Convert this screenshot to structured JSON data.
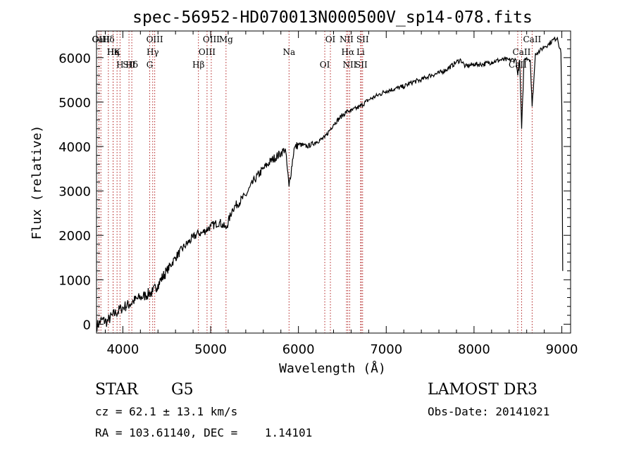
{
  "chart_data": {
    "type": "line",
    "title": "spec-56952-HD070013N000500V_sp14-078.fits",
    "xlabel": "Wavelength (Å)",
    "ylabel": "Flux (relative)",
    "xlim": [
      3700,
      9100
    ],
    "ylim": [
      -200,
      6600
    ],
    "xticks": [
      4000,
      5000,
      6000,
      7000,
      8000,
      9000
    ],
    "yticks": [
      0,
      1000,
      2000,
      3000,
      4000,
      5000,
      6000
    ],
    "xtick_labels": [
      "4000",
      "5000",
      "6000",
      "7000",
      "8000",
      "9000"
    ],
    "ytick_labels": [
      "0",
      "1000",
      "2000",
      "3000",
      "4000",
      "5000",
      "6000"
    ],
    "grid": false,
    "series": [
      {
        "name": "spectrum",
        "x": [
          3700,
          3760,
          3820,
          3880,
          3920,
          3980,
          4020,
          4080,
          4120,
          4200,
          4260,
          4300,
          4340,
          4400,
          4500,
          4600,
          4700,
          4800,
          4860,
          4900,
          5000,
          5100,
          5175,
          5250,
          5400,
          5500,
          5600,
          5700,
          5800,
          5850,
          5893,
          5950,
          6000,
          6100,
          6200,
          6300,
          6400,
          6500,
          6563,
          6600,
          6700,
          6800,
          6900,
          7000,
          7100,
          7200,
          7300,
          7400,
          7500,
          7600,
          7700,
          7800,
          7850,
          7900,
          8000,
          8100,
          8200,
          8300,
          8400,
          8480,
          8498,
          8520,
          8542,
          8570,
          8600,
          8640,
          8662,
          8700,
          8750,
          8800,
          8850,
          8900,
          8950,
          8990,
          9000,
          9010
        ],
        "y": [
          -50,
          100,
          50,
          200,
          250,
          350,
          400,
          450,
          520,
          600,
          650,
          700,
          720,
          900,
          1200,
          1500,
          1750,
          1950,
          2050,
          2050,
          2200,
          2300,
          2150,
          2600,
          2900,
          3250,
          3500,
          3700,
          3850,
          3950,
          3100,
          3950,
          4050,
          4000,
          4100,
          4200,
          4500,
          4700,
          4800,
          4800,
          4900,
          5050,
          5150,
          5250,
          5300,
          5350,
          5450,
          5500,
          5600,
          5650,
          5750,
          5900,
          5950,
          5800,
          5850,
          5850,
          5900,
          5950,
          5950,
          5950,
          5600,
          5950,
          4400,
          5950,
          6000,
          5950,
          4900,
          6100,
          6150,
          6250,
          6300,
          6400,
          6450,
          6100,
          4900,
          1200
        ]
      }
    ],
    "spectral_lines": [
      {
        "label": "Hδ",
        "x": 3835
      },
      {
        "label": "K",
        "x": 3934
      },
      {
        "label": "Hδ",
        "x": 4102
      },
      {
        "label": "OII",
        "x": 3727
      },
      {
        "label": "He",
        "x": 3889
      },
      {
        "label": "SII",
        "x": 4070
      },
      {
        "label": "CaII",
        "x": 3750
      },
      {
        "label": "Hη",
        "x": 3889
      },
      {
        "label": "H",
        "x": 3968
      },
      {
        "label": "OIII",
        "x": 4363
      },
      {
        "label": "Hγ",
        "x": 4340
      },
      {
        "label": "G",
        "x": 4306
      },
      {
        "label": "OIII",
        "x": 5007
      },
      {
        "label": "OIII",
        "x": 4959
      },
      {
        "label": "Hβ",
        "x": 4861
      },
      {
        "label": "Mg",
        "x": 5175
      },
      {
        "label": "Na",
        "x": 5893
      },
      {
        "label": "OI",
        "x": 6300
      },
      {
        "label": "OI",
        "x": 6364
      },
      {
        "label": "Hα",
        "x": 6563
      },
      {
        "label": "SII",
        "x": 6716
      },
      {
        "label": "NII",
        "x": 6548
      },
      {
        "label": "Li",
        "x": 6708
      },
      {
        "label": "NII",
        "x": 6584
      },
      {
        "label": "SII",
        "x": 6731
      },
      {
        "label": "CaII",
        "x": 8542
      },
      {
        "label": "CaII",
        "x": 8498
      },
      {
        "label": "CaII",
        "x": 8662
      }
    ]
  },
  "info": {
    "object_class": "STAR",
    "subclass": "G5",
    "survey": "LAMOST DR3",
    "velocity": "cz = 62.1 ± 13.1 km/s",
    "obs_date": "Obs-Date: 20141021",
    "coords": "RA = 103.61140, DEC =    1.14101"
  },
  "colors": {
    "line": "#000000",
    "marker_line": "#b22222",
    "axis": "#000000"
  }
}
